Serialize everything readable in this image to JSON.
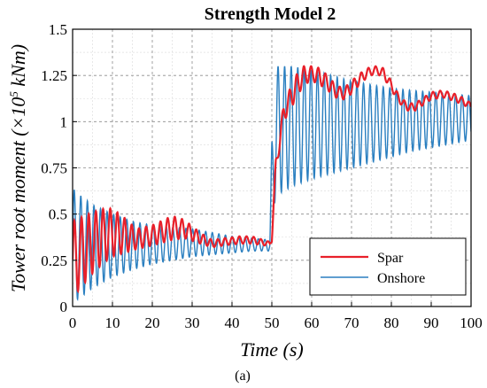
{
  "chart_data": {
    "type": "line",
    "title": "Strength Model 2",
    "xlabel": "Time (s)",
    "ylabel_main": "Tower root moment (×10",
    "ylabel_sup": "5",
    "ylabel_unit": " kNm)",
    "xlim": [
      0,
      100
    ],
    "ylim": [
      0,
      1.5
    ],
    "xticks": [
      0,
      10,
      20,
      30,
      40,
      50,
      60,
      70,
      80,
      90,
      100
    ],
    "yticks": [
      0,
      0.25,
      0.5,
      0.75,
      1,
      1.25,
      1.5
    ],
    "ytick_labels": [
      "0",
      "0.25",
      "0.5",
      "0.75",
      "1",
      "1.25",
      "1.5"
    ],
    "grid": true,
    "legend_position": "lower-right",
    "caption": "(a)",
    "series": [
      {
        "name": "Spar",
        "color": "#e8202a",
        "oscillation_period_s": 1.8,
        "envelope_upper": {
          "x": [
            0,
            2,
            5,
            8,
            10,
            13,
            16,
            20,
            25,
            28,
            32,
            35,
            38,
            42,
            45,
            48,
            49.5,
            50,
            51,
            53,
            56,
            58,
            60,
            62,
            64,
            66,
            68,
            70,
            72,
            74,
            76,
            78,
            80,
            82,
            84,
            86,
            88,
            90,
            93,
            96,
            98,
            100
          ],
          "y": [
            0.46,
            0.48,
            0.51,
            0.53,
            0.53,
            0.48,
            0.42,
            0.44,
            0.49,
            0.47,
            0.4,
            0.36,
            0.37,
            0.38,
            0.38,
            0.36,
            0.35,
            0.4,
            0.8,
            1.1,
            1.25,
            1.3,
            1.3,
            1.29,
            1.25,
            1.2,
            1.18,
            1.22,
            1.26,
            1.29,
            1.3,
            1.29,
            1.22,
            1.14,
            1.1,
            1.1,
            1.13,
            1.16,
            1.17,
            1.15,
            1.13,
            1.1
          ]
        },
        "envelope_lower": {
          "x": [
            0,
            2,
            5,
            8,
            10,
            13,
            16,
            20,
            25,
            28,
            32,
            35,
            38,
            42,
            45,
            48,
            49.5,
            50,
            51,
            53,
            56,
            58,
            60,
            62,
            64,
            66,
            68,
            70,
            72,
            74,
            76,
            78,
            80,
            82,
            84,
            86,
            88,
            90,
            93,
            96,
            98,
            100
          ],
          "y": [
            0.05,
            0.1,
            0.18,
            0.24,
            0.27,
            0.29,
            0.31,
            0.33,
            0.36,
            0.37,
            0.34,
            0.32,
            0.33,
            0.34,
            0.34,
            0.33,
            0.33,
            0.35,
            0.72,
            1.0,
            1.12,
            1.2,
            1.22,
            1.2,
            1.17,
            1.13,
            1.12,
            1.15,
            1.2,
            1.24,
            1.26,
            1.24,
            1.17,
            1.1,
            1.06,
            1.06,
            1.09,
            1.12,
            1.13,
            1.11,
            1.09,
            1.07
          ]
        }
      },
      {
        "name": "Onshore",
        "color": "#2a7fc0",
        "oscillation_period_s": 1.65,
        "envelope_upper": {
          "x": [
            0,
            2,
            5,
            10,
            15,
            20,
            25,
            30,
            35,
            40,
            45,
            49.5,
            50,
            51,
            55,
            60,
            65,
            70,
            75,
            80,
            85,
            90,
            95,
            100
          ],
          "y": [
            0.64,
            0.6,
            0.55,
            0.5,
            0.46,
            0.44,
            0.43,
            0.42,
            0.4,
            0.38,
            0.37,
            0.36,
            0.9,
            1.3,
            1.3,
            1.28,
            1.25,
            1.22,
            1.2,
            1.18,
            1.17,
            1.16,
            1.15,
            1.14
          ]
        },
        "envelope_lower": {
          "x": [
            0,
            2,
            5,
            10,
            15,
            20,
            25,
            30,
            35,
            40,
            45,
            49.5,
            50,
            51,
            55,
            60,
            65,
            70,
            75,
            80,
            85,
            90,
            95,
            100
          ],
          "y": [
            0.02,
            0.05,
            0.1,
            0.16,
            0.2,
            0.23,
            0.25,
            0.27,
            0.28,
            0.29,
            0.3,
            0.3,
            0.45,
            0.6,
            0.65,
            0.69,
            0.72,
            0.75,
            0.78,
            0.81,
            0.84,
            0.86,
            0.88,
            0.9
          ]
        }
      }
    ]
  }
}
